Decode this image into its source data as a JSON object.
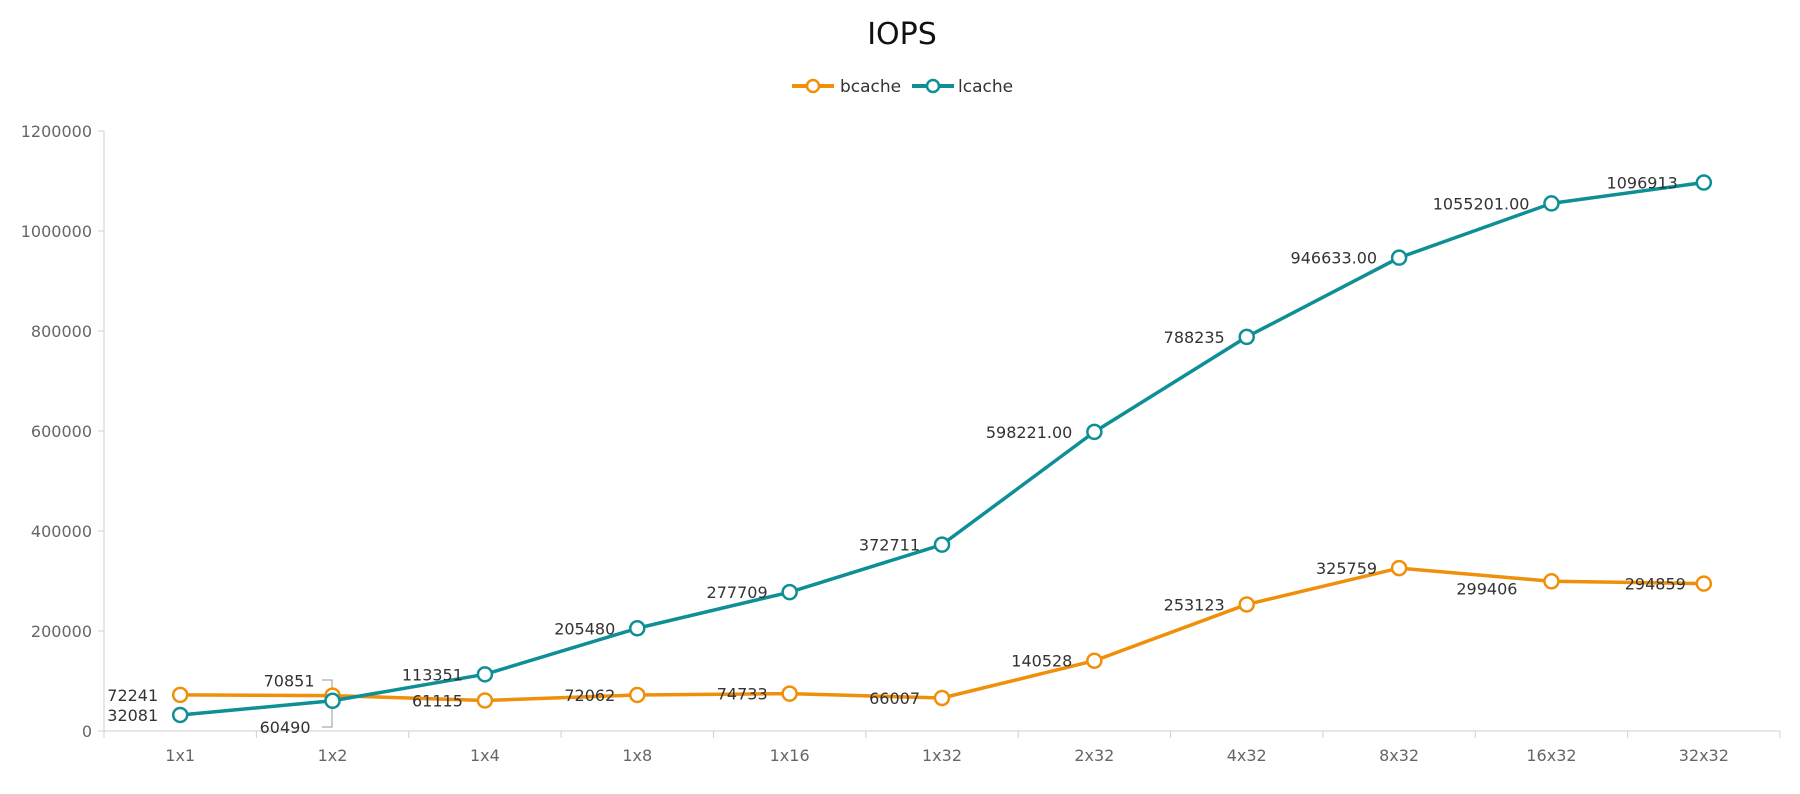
{
  "chart_data": {
    "type": "line",
    "title": "IOPS",
    "categories": [
      "1x1",
      "1x2",
      "1x4",
      "1x8",
      "1x16",
      "1x32",
      "2x32",
      "4x32",
      "8x32",
      "16x32",
      "32x32"
    ],
    "ylim": [
      0,
      1200000
    ],
    "yticks": [
      "0",
      "200000",
      "400000",
      "600000",
      "800000",
      "1000000",
      "1200000"
    ],
    "grid": false,
    "legend_position": "top-center",
    "series": [
      {
        "name": "bcache",
        "color": "#F0900A",
        "values": [
          72241,
          70851,
          61115,
          72062,
          74733,
          66007,
          140528,
          253123,
          325759,
          299406,
          294859
        ],
        "labels": [
          "72241",
          "70851",
          "61115",
          "72062",
          "74733",
          "66007",
          "140528",
          "253123",
          "325759",
          "299406",
          "294859"
        ]
      },
      {
        "name": "lcache",
        "color": "#0E8F96",
        "values": [
          32081,
          60490,
          113351,
          205480,
          277709,
          372711,
          598221,
          788235,
          946633,
          1055201,
          1096913
        ],
        "labels": [
          "32081",
          "60490",
          "113351",
          "205480",
          "277709",
          "372711",
          "598221.00",
          "788235",
          "946633.00",
          "1055201.00",
          "1096913"
        ]
      }
    ]
  }
}
